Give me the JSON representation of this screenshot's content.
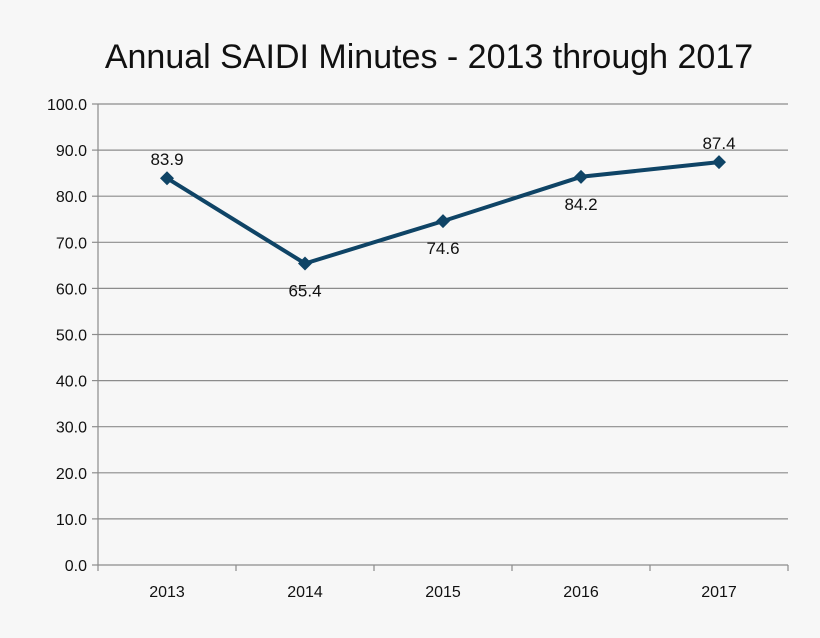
{
  "chart_data": {
    "type": "line",
    "title": "Annual SAIDI Minutes - 2013 through 2017",
    "categories": [
      "2013",
      "2014",
      "2015",
      "2016",
      "2017"
    ],
    "series": [
      {
        "values": [
          83.9,
          65.4,
          74.6,
          84.2,
          87.4
        ],
        "labels": [
          "83.9",
          "65.4",
          "74.6",
          "84.2",
          "87.4"
        ],
        "color": "#0f4466",
        "marker": "diamond",
        "label_positions": [
          "above",
          "below",
          "below",
          "below",
          "above"
        ]
      }
    ],
    "ylim": [
      0,
      100
    ],
    "yticks": [
      0,
      10,
      20,
      30,
      40,
      50,
      60,
      70,
      80,
      90,
      100
    ],
    "ytick_labels": [
      "0.0",
      "10.0",
      "20.0",
      "30.0",
      "40.0",
      "50.0",
      "60.0",
      "70.0",
      "80.0",
      "90.0",
      "100.0"
    ],
    "xlabel": "",
    "ylabel": "",
    "grid": true,
    "legend": "none"
  }
}
